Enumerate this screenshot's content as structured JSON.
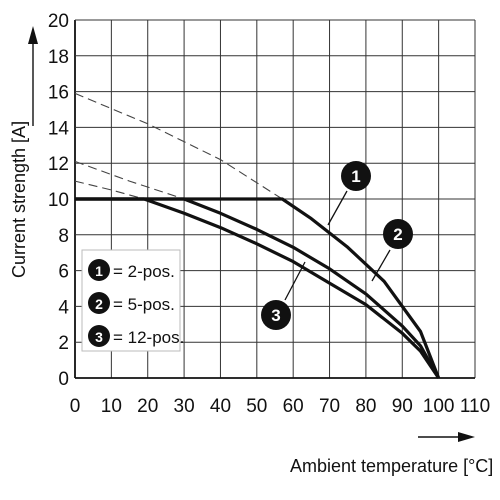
{
  "chart_data": {
    "type": "line",
    "xlabel": "Ambient temperature [°C]",
    "ylabel": "Current strength [A]",
    "xlim": [
      0,
      110
    ],
    "ylim": [
      0,
      20
    ],
    "x_ticks": [
      "0",
      "10",
      "20",
      "30",
      "40",
      "50",
      "60",
      "70",
      "80",
      "90",
      "100",
      "110"
    ],
    "y_ticks": [
      "0",
      "2",
      "4",
      "6",
      "8",
      "10",
      "12",
      "14",
      "16",
      "18",
      "20"
    ],
    "grid": true,
    "legend_position": "lower-left",
    "series": [
      {
        "id": "1",
        "name": "= 2-pos.",
        "solid": [
          [
            0,
            10
          ],
          [
            57,
            10
          ],
          [
            65,
            8.9
          ],
          [
            75,
            7.3
          ],
          [
            85,
            5.4
          ],
          [
            95,
            2.6
          ],
          [
            100,
            0
          ]
        ],
        "dashed": [
          [
            0,
            15.9
          ],
          [
            20,
            14.2
          ],
          [
            40,
            12.2
          ],
          [
            57,
            10
          ]
        ]
      },
      {
        "id": "2",
        "name": "= 5-pos.",
        "solid": [
          [
            0,
            10
          ],
          [
            30,
            10
          ],
          [
            40,
            9.2
          ],
          [
            50,
            8.3
          ],
          [
            60,
            7.3
          ],
          [
            70,
            6.1
          ],
          [
            80,
            4.7
          ],
          [
            90,
            2.9
          ],
          [
            95,
            1.8
          ],
          [
            100,
            0
          ]
        ],
        "dashed": [
          [
            0,
            12.1
          ],
          [
            15,
            11
          ],
          [
            30,
            10
          ]
        ]
      },
      {
        "id": "3",
        "name": "= 12-pos.",
        "solid": [
          [
            0,
            10
          ],
          [
            19,
            10
          ],
          [
            30,
            9.2
          ],
          [
            40,
            8.4
          ],
          [
            50,
            7.5
          ],
          [
            60,
            6.5
          ],
          [
            70,
            5.3
          ],
          [
            80,
            4.1
          ],
          [
            90,
            2.5
          ],
          [
            95,
            1.5
          ],
          [
            100,
            0
          ]
        ],
        "dashed": [
          [
            0,
            11
          ],
          [
            10,
            10.5
          ],
          [
            19,
            10
          ]
        ]
      }
    ]
  }
}
